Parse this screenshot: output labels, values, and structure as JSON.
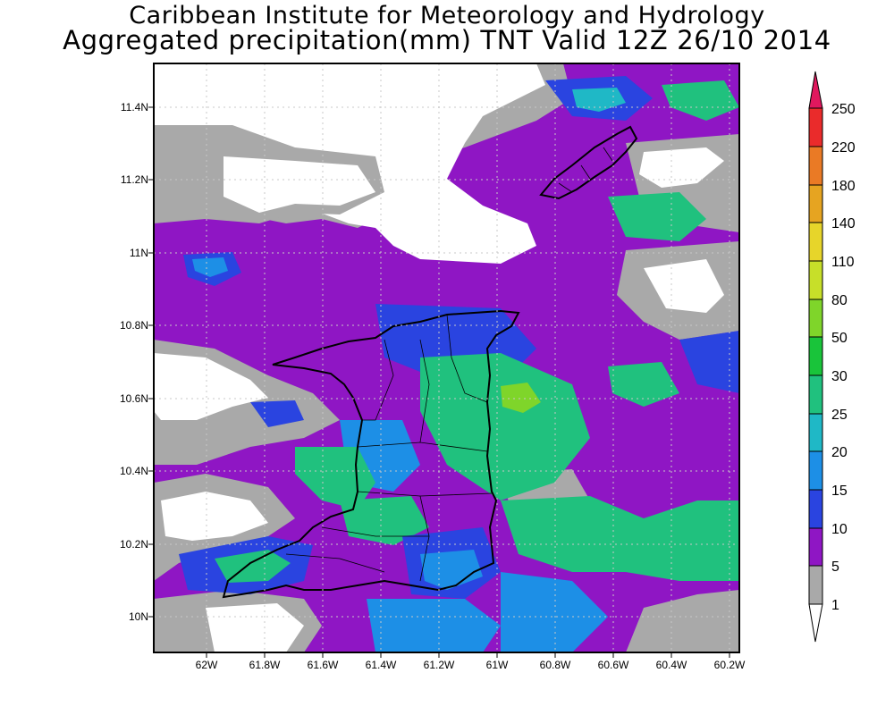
{
  "title": {
    "line1": "Caribbean Institute for Meteorology and Hydrology",
    "line2": "Aggregated precipitation(mm) TNT Valid 12Z 26/10 2014"
  },
  "map": {
    "lat_labels": [
      "11.4N",
      "11.2N",
      "11N",
      "10.8N",
      "10.6N",
      "10.4N",
      "10.2N",
      "10N"
    ],
    "lon_labels": [
      "62W",
      "61.8W",
      "61.6W",
      "61.4W",
      "61.2W",
      "61W",
      "60.8W",
      "60.6W",
      "60.4W",
      "60.2W"
    ],
    "lat_range": [
      9.92,
      11.52
    ],
    "lon_range": [
      62.16,
      60.16
    ],
    "grid": true
  },
  "colorbar": {
    "levels": [
      "1",
      "5",
      "10",
      "15",
      "20",
      "25",
      "30",
      "50",
      "80",
      "110",
      "140",
      "180",
      "220",
      "250"
    ],
    "colors": {
      "c1": "#a9a9a9",
      "c5": "#7d0fbf",
      "c10": "#8f16c4",
      "c15": "#2a44e0",
      "c20": "#1d8fe6",
      "c25": "#1fb8c6",
      "c30": "#20c17e",
      "c50": "#19c43a",
      "c80": "#7fd52a",
      "c110": "#c7df29",
      "c140": "#e7d52a",
      "c180": "#e6a421",
      "c220": "#ea7a25",
      "c250": "#ea2b2b",
      "top": "#e0185e"
    }
  }
}
